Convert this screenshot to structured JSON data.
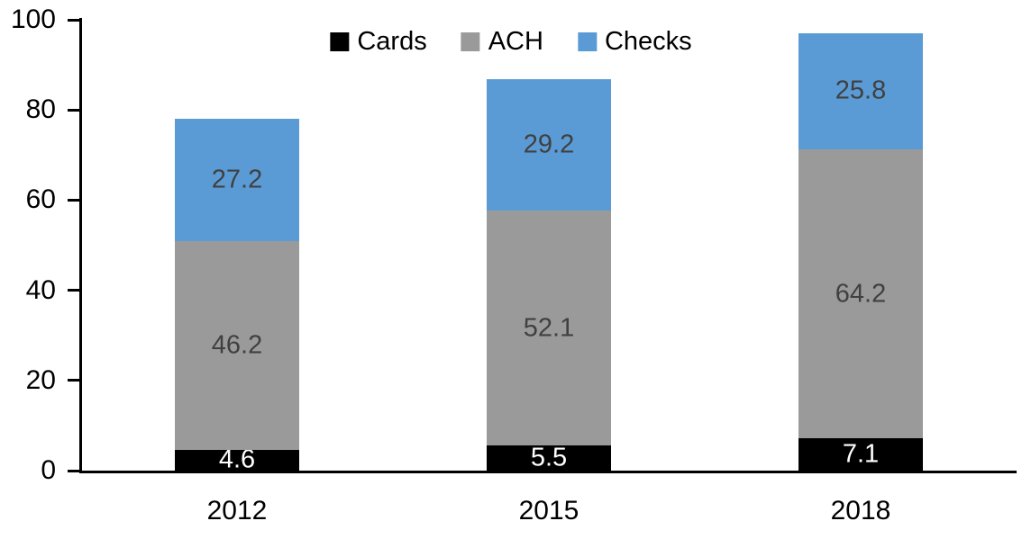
{
  "chart_data": {
    "type": "bar",
    "stacked": true,
    "title": "",
    "categories": [
      "2012",
      "2015",
      "2018"
    ],
    "series": [
      {
        "name": "Cards",
        "color": "#000000",
        "label_color": "#ffffff",
        "values": [
          4.6,
          5.5,
          7.1
        ]
      },
      {
        "name": "ACH",
        "color": "#9a9a9a",
        "label_color": "#404040",
        "values": [
          46.2,
          52.1,
          64.2
        ]
      },
      {
        "name": "Checks",
        "color": "#5b9bd5",
        "label_color": "#404040",
        "values": [
          27.2,
          29.2,
          25.8
        ]
      }
    ],
    "xlabel": "",
    "ylabel": "",
    "ylim": [
      0,
      100
    ],
    "yticks": [
      0,
      20,
      40,
      60,
      80,
      100
    ],
    "legend_position": "top-center",
    "grid": false,
    "axis_color": "#000000"
  }
}
